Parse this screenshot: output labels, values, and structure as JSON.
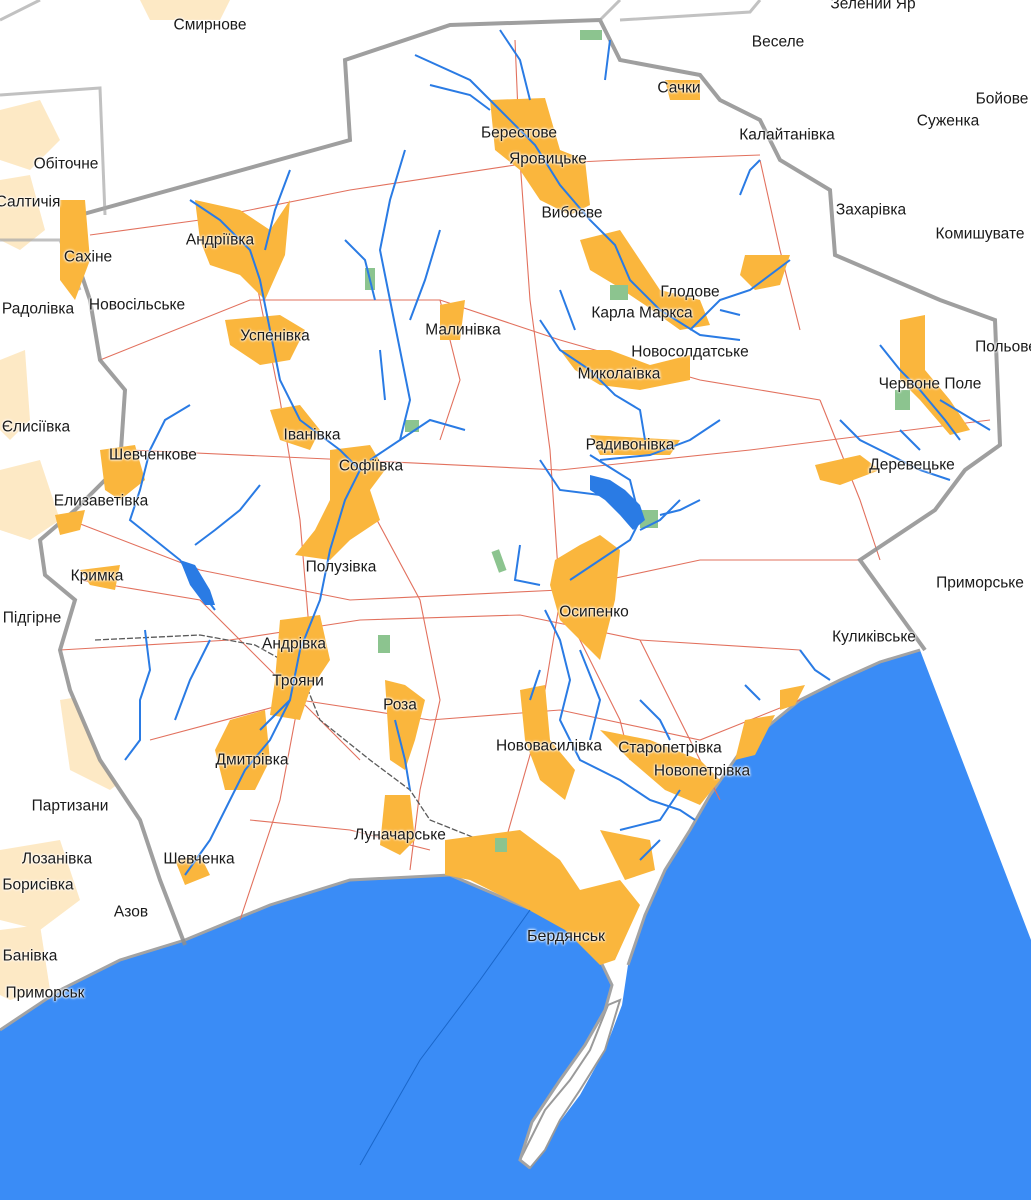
{
  "map": {
    "colors": {
      "sea": "#3a8cf6",
      "land": "#ffffff",
      "outside_tint": "#f4f5f4",
      "settlement": "#fab63d",
      "river": "#2a7be4",
      "road": "#e2715e",
      "border": "#8e8e8e",
      "forest": "#8cc48f",
      "railway": "#5a5a5a"
    },
    "labels": {
      "smyrnove": "Смирнове",
      "zelenyi_yar": "Зелений Яр",
      "vesele": "Веселе",
      "boiove": "Бойове",
      "sachky": "Сачки",
      "obitochne": "Обіточне",
      "berestove": "Берестове",
      "kalaitanivka": "Калайтанівка",
      "suzhenka": "Суженка",
      "yarovytske": "Яровицьке",
      "saltychiia": "Салтичія",
      "vyboive": "Вибоєве",
      "zakharivka": "Захарівка",
      "andriivka_n": "Андріївка",
      "komyshuvate": "Комишувате",
      "sakhine": "Сахіне",
      "hlodove": "Глодове",
      "radolivka": "Радолівка",
      "novosilske": "Новосільське",
      "karla_marksa": "Карла Маркса",
      "malynivka": "Малинівка",
      "uspenivka": "Успенівка",
      "polove": "Польове",
      "novosoldatske": "Новосолдатське",
      "mykolaivka": "Миколаївка",
      "chervone_pole": "Червоне Поле",
      "ielysiivka": "Єлисіївка",
      "ivanivka": "Іванівка",
      "radyvonivka": "Радивонівка",
      "shevchenkove": "Шевченкове",
      "sofiivka": "Софіївка",
      "derevetske": "Деревецьке",
      "ielyzavetivka": "Елизаветівка",
      "poluzivka": "Полузівка",
      "prymorske_e": "Приморське",
      "krymka": "Кримка",
      "osypenko": "Осипенко",
      "pidhirne": "Підгірне",
      "kulykivske": "Куликівське",
      "andrivka": "Андрівка",
      "troiany": "Трояни",
      "roza": "Роза",
      "novovasylivka": "Нововасилівка",
      "staropetrivka": "Старопетрівка",
      "dmytrivka": "Дмитрівка",
      "novopetrivka": "Новопетрівка",
      "partyzany": "Партизани",
      "lunacharske": "Луначарське",
      "lozanivka": "Лозанівка",
      "shevchenka": "Шевченка",
      "borysivka": "Борисівка",
      "azov": "Азов",
      "berdiansk": "Бердянськ",
      "banivka": "Банівка",
      "prymorsk": "Приморськ"
    }
  }
}
